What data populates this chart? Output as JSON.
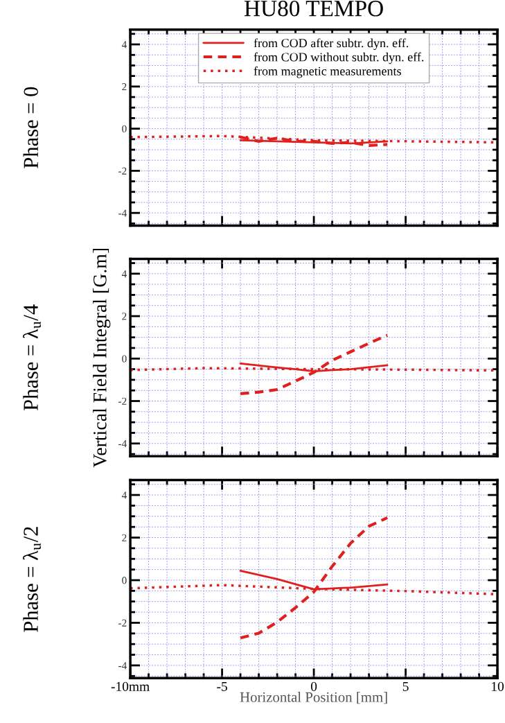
{
  "chart_data": [
    {
      "type": "line",
      "title": "HU80 TEMPO",
      "annotations": [
        "Phase = 0"
      ],
      "xlim": [
        -10,
        10
      ],
      "xticks": [
        -10,
        -5,
        0,
        5,
        10
      ],
      "ylim": [
        -4.6,
        4.7
      ],
      "yticks": [
        -4,
        -2,
        0,
        2,
        4
      ],
      "tick_labels": "y",
      "grid": true,
      "legend": "top",
      "series": [
        {
          "name": "from COD after subtr. dyn. eff.",
          "color": "#e0201e",
          "line_style": "solid",
          "x": [
            -4,
            -2,
            0,
            2,
            4
          ],
          "values": [
            -0.55,
            -0.6,
            -0.65,
            -0.7,
            -0.6
          ]
        },
        {
          "name": "from COD without subtr. dyn. eff.",
          "color": "#e0201e",
          "line_style": "dashed",
          "x": [
            -4,
            -3,
            -2,
            -1,
            0,
            1,
            2,
            3,
            4
          ],
          "values": [
            -0.4,
            -0.6,
            -0.45,
            -0.6,
            -0.6,
            -0.7,
            -0.65,
            -0.8,
            -0.75
          ]
        },
        {
          "name": "from magnetic measurements",
          "color": "#e0201e",
          "line_style": "dotted",
          "x": [
            -10,
            -5,
            0,
            5,
            10
          ],
          "values": [
            -0.4,
            -0.35,
            -0.55,
            -0.6,
            -0.65
          ]
        }
      ]
    },
    {
      "type": "line",
      "ylabel": "Vertical Field Integral [G.m]",
      "annotations": [
        "Phase = λ$_{u}$/4"
      ],
      "xlim": [
        -10,
        10
      ],
      "xticks": [
        -10,
        -5,
        0,
        5,
        10
      ],
      "ylim": [
        -4.6,
        4.7
      ],
      "yticks": [
        -4,
        -2,
        0,
        2,
        4
      ],
      "tick_labels": "y",
      "grid": true,
      "series": [
        {
          "color": "#e0201e",
          "line_style": "solid",
          "x": [
            -4,
            -2,
            -1,
            0,
            1,
            2,
            4
          ],
          "values": [
            -0.23,
            -0.42,
            -0.5,
            -0.6,
            -0.54,
            -0.5,
            -0.31
          ]
        },
        {
          "color": "#e0201e",
          "line_style": "dashed",
          "x": [
            -4,
            -3,
            -2,
            -1,
            0,
            1,
            2,
            3,
            4
          ],
          "values": [
            -1.65,
            -1.58,
            -1.46,
            -1.06,
            -0.65,
            -0.08,
            0.32,
            0.72,
            1.1
          ]
        },
        {
          "color": "#e0201e",
          "line_style": "dotted",
          "x": [
            -10,
            -6,
            0,
            5,
            10
          ],
          "values": [
            -0.54,
            -0.45,
            -0.5,
            -0.52,
            -0.56
          ]
        }
      ]
    },
    {
      "type": "line",
      "xlabel": "Horizontal Position [mm]",
      "annotations": [
        "Phase = λ$_{u}$/2"
      ],
      "xlim": [
        -10,
        10
      ],
      "xticks": [
        {
          "value": -10,
          "label": "-10mm"
        },
        -5,
        0,
        5,
        10
      ],
      "ylim": [
        -4.6,
        4.7
      ],
      "yticks": [
        -4,
        -2,
        0,
        2,
        4
      ],
      "grid": true,
      "series": [
        {
          "color": "#e0201e",
          "line_style": "solid",
          "x": [
            -4,
            -2,
            0,
            2,
            4
          ],
          "values": [
            0.44,
            0.05,
            -0.43,
            -0.35,
            -0.2
          ]
        },
        {
          "color": "#e0201e",
          "line_style": "dashed",
          "x": [
            -4,
            -3,
            -2,
            -1,
            0,
            1,
            2,
            3,
            4
          ],
          "values": [
            -2.71,
            -2.49,
            -1.97,
            -1.29,
            -0.55,
            0.65,
            1.73,
            2.53,
            2.93
          ]
        },
        {
          "color": "#e0201e",
          "line_style": "dotted",
          "x": [
            -10,
            -5,
            0,
            5,
            10
          ],
          "values": [
            -0.38,
            -0.23,
            -0.41,
            -0.51,
            -0.66
          ]
        }
      ]
    }
  ]
}
